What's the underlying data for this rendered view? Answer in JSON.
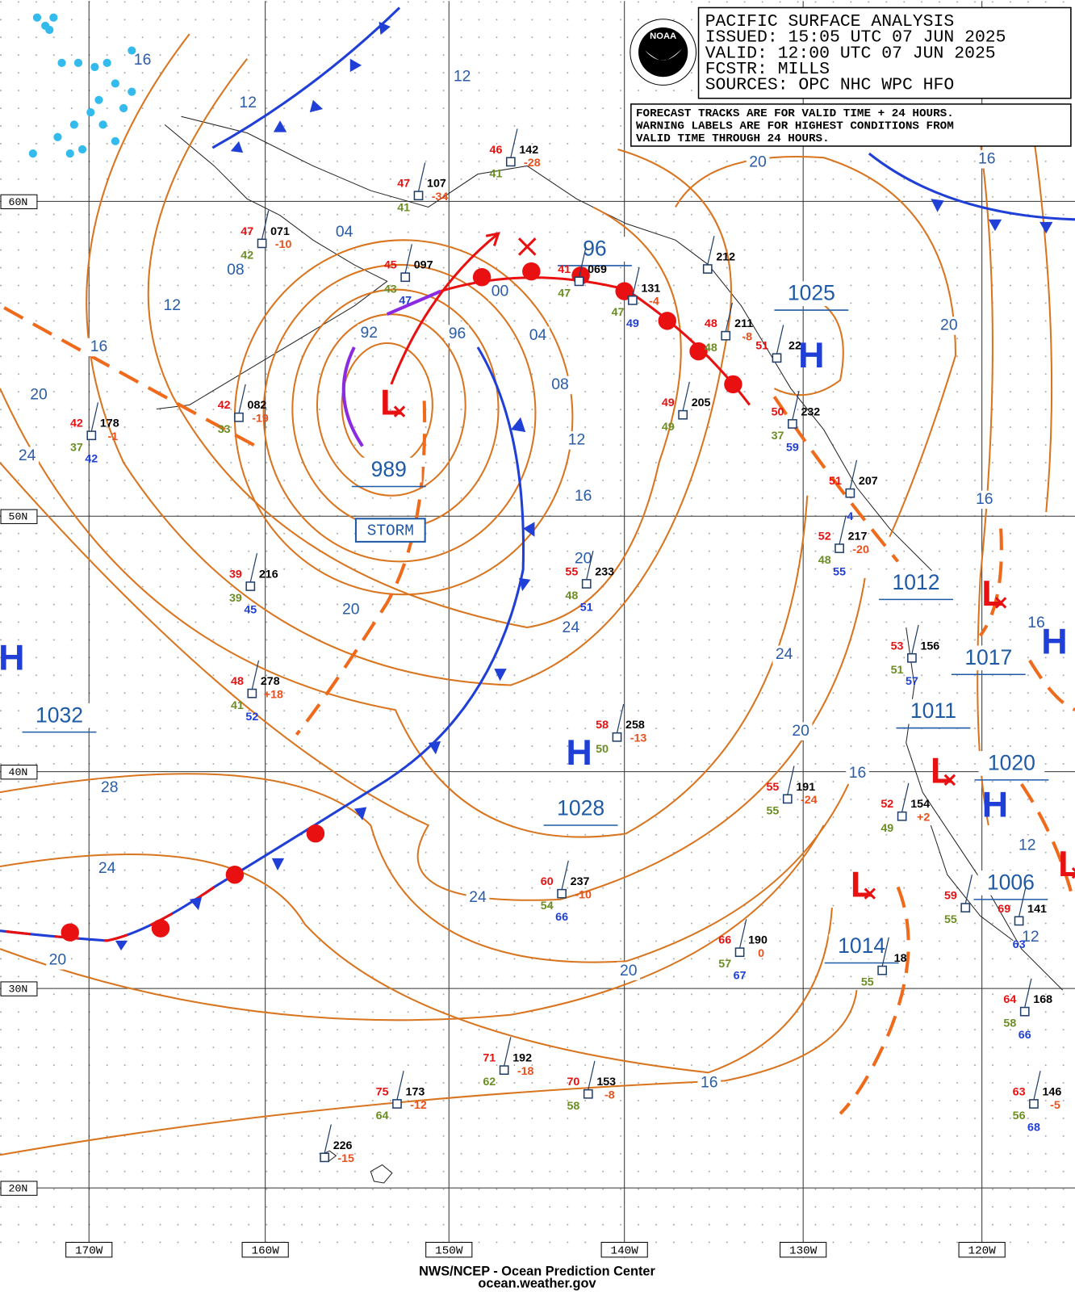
{
  "header": {
    "lines": [
      "PACIFIC SURFACE ANALYSIS",
      "ISSUED: 15:05 UTC 07 JUN 2025",
      "VALID:  12:00 UTC 07 JUN 2025",
      "FCSTR:  MILLS",
      "SOURCES: OPC NHC WPC HFO"
    ]
  },
  "note": {
    "lines": [
      "FORECAST TRACKS ARE FOR VALID TIME + 24 HOURS.",
      "WARNING LABELS ARE FOR HIGHEST CONDITIONS FROM",
      "VALID TIME THROUGH 24 HOURS."
    ]
  },
  "logo": "NOAA",
  "latitude_labels": [
    "60N",
    "50N",
    "40N",
    "30N",
    "20N"
  ],
  "longitude_labels": [
    "170W",
    "160W",
    "150W",
    "140W",
    "130W",
    "120W"
  ],
  "isobar_labels": [
    "16",
    "12",
    "12",
    "04",
    "08",
    "12",
    "16",
    "20",
    "24",
    "92",
    "96",
    "00",
    "04",
    "08",
    "12",
    "16",
    "20",
    "20",
    "24",
    "24",
    "20",
    "16",
    "28",
    "24",
    "24",
    "20",
    "20",
    "16",
    "20",
    "16",
    "20",
    "16",
    "16",
    "12",
    "12"
  ],
  "center_labels": [
    "96",
    "1025",
    "989",
    "1032",
    "1028",
    "1012",
    "1017",
    "1011",
    "1020",
    "1006",
    "1014"
  ],
  "center_symbols": [
    "L",
    "H",
    "H",
    "H",
    "H",
    "H",
    "L",
    "L",
    "L",
    "L"
  ],
  "warning": "STORM",
  "stations": [
    {
      "temp": "42",
      "pressure": "178",
      "dewpoint": "37",
      "water": "42",
      "tendency": "-1"
    },
    {
      "temp": "42",
      "pressure": "082",
      "dewpoint": "33",
      "tendency": "-19"
    },
    {
      "temp": "47",
      "pressure": "071",
      "dewpoint": "42",
      "tendency": "-10"
    },
    {
      "temp": "47",
      "pressure": "107",
      "dewpoint": "41",
      "tendency": "-34"
    },
    {
      "temp": "46",
      "pressure": "142",
      "dewpoint": "41",
      "tendency": "-28"
    },
    {
      "temp": "45",
      "pressure": "097",
      "dewpoint": "43",
      "water": "47"
    },
    {
      "temp": "41",
      "pressure": "069",
      "dewpoint": "47"
    },
    {
      "pressure": "131",
      "dewpoint": "47",
      "water": "49",
      "tendency": "-4"
    },
    {
      "pressure": "212"
    },
    {
      "temp": "48",
      "pressure": "211",
      "dewpoint": "48",
      "tendency": "-8"
    },
    {
      "temp": "51",
      "pressure": "22"
    },
    {
      "temp": "49",
      "pressure": "205",
      "dewpoint": "49"
    },
    {
      "temp": "50",
      "pressure": "232",
      "dewpoint": "37",
      "water": "59"
    },
    {
      "temp": "51",
      "pressure": "207",
      "water": "4"
    },
    {
      "temp": "52",
      "pressure": "217",
      "dewpoint": "48",
      "water": "55",
      "tendency": "-20"
    },
    {
      "temp": "39",
      "pressure": "216",
      "dewpoint": "39",
      "water": "45"
    },
    {
      "temp": "55",
      "pressure": "233",
      "dewpoint": "48",
      "water": "51"
    },
    {
      "temp": "48",
      "pressure": "278",
      "dewpoint": "41",
      "water": "52",
      "tendency": "+18"
    },
    {
      "temp": "58",
      "pressure": "258",
      "dewpoint": "50",
      "tendency": "-13"
    },
    {
      "temp": "55",
      "pressure": "191",
      "dewpoint": "55",
      "tendency": "-24"
    },
    {
      "temp": "52",
      "pressure": "154",
      "dewpoint": "49",
      "tendency": "+2"
    },
    {
      "temp": "53",
      "pressure": "156",
      "dewpoint": "51",
      "water": "57"
    },
    {
      "temp": "60",
      "pressure": "237",
      "dewpoint": "54",
      "water": "66",
      "tendency": "-10"
    },
    {
      "temp": "66",
      "pressure": "190",
      "dewpoint": "57",
      "water": "67",
      "tendency": "0"
    },
    {
      "pressure": "18",
      "dewpoint": "55"
    },
    {
      "temp": "64",
      "pressure": "168",
      "dewpoint": "58",
      "water": "66"
    },
    {
      "temp": "63",
      "pressure": "146",
      "dewpoint": "56",
      "water": "68",
      "tendency": "-5"
    },
    {
      "temp": "71",
      "pressure": "192",
      "dewpoint": "62",
      "tendency": "-18"
    },
    {
      "temp": "70",
      "pressure": "153",
      "dewpoint": "58",
      "tendency": "-8"
    },
    {
      "temp": "75",
      "pressure": "173",
      "dewpoint": "64",
      "tendency": "-12"
    },
    {
      "pressure": "226",
      "tendency": "-15"
    },
    {
      "temp": "59",
      "dewpoint": "55"
    },
    {
      "temp": "69",
      "pressure": "141",
      "water": "63"
    }
  ],
  "footer": {
    "lines": [
      "NWS/NCEP - Ocean Prediction Center",
      "ocean.weather.gov"
    ]
  }
}
